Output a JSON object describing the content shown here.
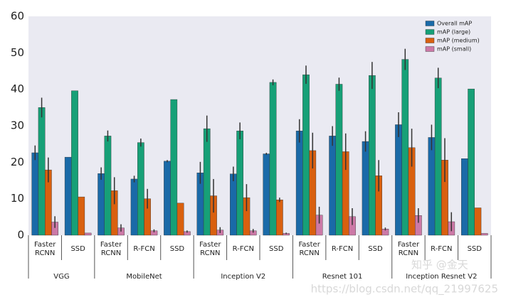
{
  "chart_data": {
    "type": "bar",
    "groups": [
      {
        "label": "VGG",
        "categories": [
          "Faster RCNN",
          "SSD"
        ]
      },
      {
        "label": "MobileNet",
        "categories": [
          "Faster RCNN",
          "R-FCN",
          "SSD"
        ]
      },
      {
        "label": "Inception V2",
        "categories": [
          "Faster RCNN",
          "R-FCN",
          "SSD"
        ]
      },
      {
        "label": "Resnet 101",
        "categories": [
          "Faster RCNN",
          "R-FCN",
          "SSD"
        ]
      },
      {
        "label": "Inception Resnet V2",
        "categories": [
          "Faster RCNN",
          "R-FCN",
          "SSD"
        ]
      }
    ],
    "series": [
      {
        "name": "Overall mAP",
        "color": "#1a6aa8",
        "values": [
          22.6,
          21.4,
          16.9,
          15.4,
          20.3,
          17.1,
          16.8,
          22.3,
          28.6,
          27.2,
          25.7,
          30.3,
          26.8,
          21.0
        ],
        "errors": [
          2.0,
          null,
          1.7,
          0.9,
          0.3,
          3.0,
          2.0,
          0.3,
          3.2,
          2.7,
          2.8,
          3.4,
          3.5,
          null
        ]
      },
      {
        "name": "mAP (large)",
        "color": "#17a077",
        "values": [
          35.0,
          39.6,
          27.2,
          25.4,
          37.2,
          29.2,
          28.6,
          41.9,
          44.0,
          41.4,
          43.8,
          48.2,
          43.1,
          40.1
        ],
        "errors": [
          2.7,
          null,
          1.5,
          1.1,
          null,
          3.6,
          2.3,
          0.8,
          2.5,
          1.8,
          3.7,
          2.9,
          2.8,
          null
        ]
      },
      {
        "name": "mAP (medium)",
        "color": "#d9600f",
        "values": [
          17.9,
          10.5,
          12.2,
          10.0,
          8.8,
          10.8,
          10.3,
          9.7,
          23.2,
          22.9,
          16.3,
          24.0,
          20.6,
          7.5
        ],
        "errors": [
          3.4,
          null,
          3.7,
          2.7,
          null,
          4.6,
          3.7,
          0.6,
          4.9,
          5.0,
          4.3,
          5.2,
          6.0,
          null
        ]
      },
      {
        "name": "mAP (small)",
        "color": "#cc79a7",
        "values": [
          3.6,
          0.6,
          2.0,
          1.2,
          1.0,
          1.4,
          1.2,
          0.5,
          5.5,
          5.1,
          1.7,
          5.4,
          3.7,
          0.5
        ],
        "errors": [
          1.6,
          null,
          1.0,
          0.4,
          0.3,
          0.8,
          0.5,
          0.2,
          2.3,
          2.3,
          0.4,
          2.0,
          2.6,
          null
        ]
      }
    ],
    "ylim": [
      0,
      60
    ],
    "yticks": [
      0,
      10,
      20,
      30,
      40,
      50,
      60
    ],
    "grid": false,
    "legend": "upper right",
    "watermarks": [
      "知乎 @金天",
      "https://blog.csdn.net/qq_21997625"
    ]
  }
}
